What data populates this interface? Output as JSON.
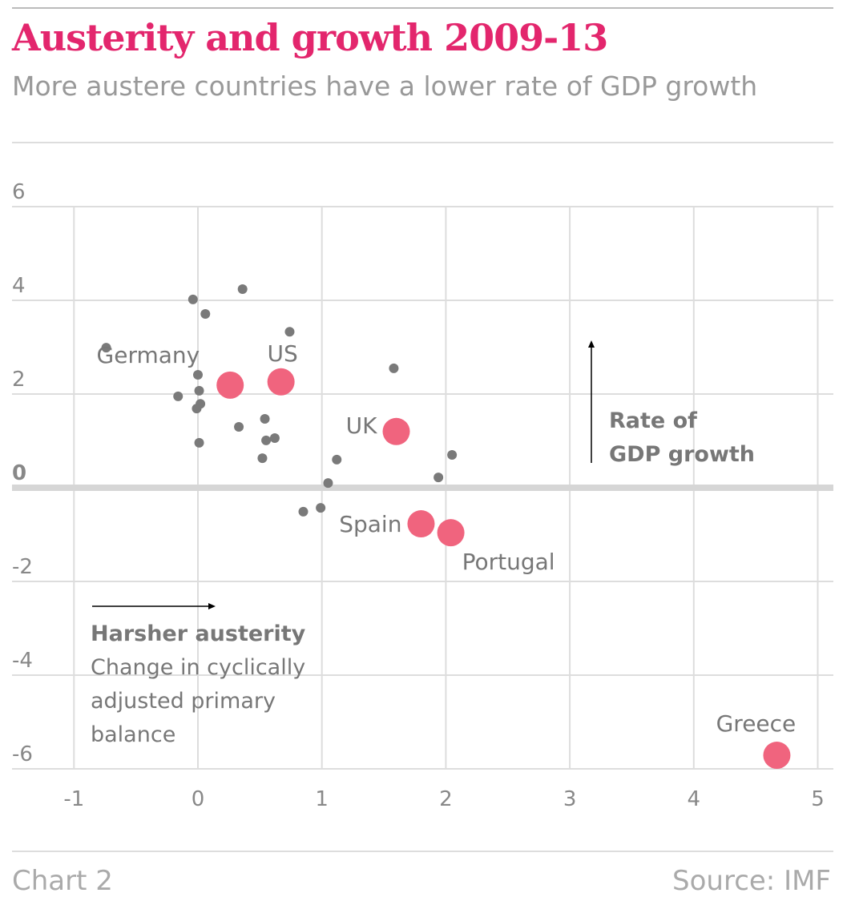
{
  "chart_data": {
    "type": "scatter",
    "title": "Austerity and growth 2009-13",
    "subtitle": "More austere countries have a lower rate of GDP growth",
    "xlim": [
      -1,
      5
    ],
    "ylim": [
      -6,
      6
    ],
    "xticks": [
      "-1",
      "0",
      "1",
      "2",
      "3",
      "4",
      "5"
    ],
    "yticks": [
      "6",
      "4",
      "2",
      "0",
      "-2",
      "-4",
      "-6"
    ],
    "grid": true,
    "colors": {
      "highlight": "#f0647e",
      "other": "#7a7a7a",
      "title": "#e3266d"
    },
    "x_annotation": {
      "heading": "Harsher austerity",
      "lines": [
        "Change in cyclically",
        "adjusted primary",
        "balance"
      ]
    },
    "y_annotation": {
      "lines": [
        "Rate of",
        "GDP growth"
      ]
    },
    "highlighted": [
      {
        "label": "Germany",
        "x": 0.26,
        "y": 2.19
      },
      {
        "label": "US",
        "x": 0.67,
        "y": 2.26
      },
      {
        "label": "UK",
        "x": 1.6,
        "y": 1.2
      },
      {
        "label": "Spain",
        "x": 1.8,
        "y": -0.77
      },
      {
        "label": "Portugal",
        "x": 2.04,
        "y": -0.96
      },
      {
        "label": "Greece",
        "x": 4.67,
        "y": -5.71
      }
    ],
    "others": [
      [
        -0.74,
        2.99
      ],
      [
        -0.04,
        4.02
      ],
      [
        0.06,
        3.71
      ],
      [
        0.36,
        4.24
      ],
      [
        0.74,
        3.33
      ],
      [
        0.0,
        2.41
      ],
      [
        0.01,
        2.07
      ],
      [
        -0.16,
        1.95
      ],
      [
        0.02,
        1.79
      ],
      [
        -0.01,
        1.69
      ],
      [
        0.01,
        0.96
      ],
      [
        0.33,
        1.3
      ],
      [
        0.54,
        1.47
      ],
      [
        0.55,
        1.01
      ],
      [
        0.62,
        1.06
      ],
      [
        0.52,
        0.63
      ],
      [
        1.58,
        2.55
      ],
      [
        1.12,
        0.6
      ],
      [
        1.05,
        0.1
      ],
      [
        2.05,
        0.7
      ],
      [
        1.94,
        0.22
      ],
      [
        0.85,
        -0.51
      ],
      [
        0.99,
        -0.43
      ]
    ]
  },
  "footer": {
    "left": "Chart 2",
    "right": "Source: IMF"
  }
}
